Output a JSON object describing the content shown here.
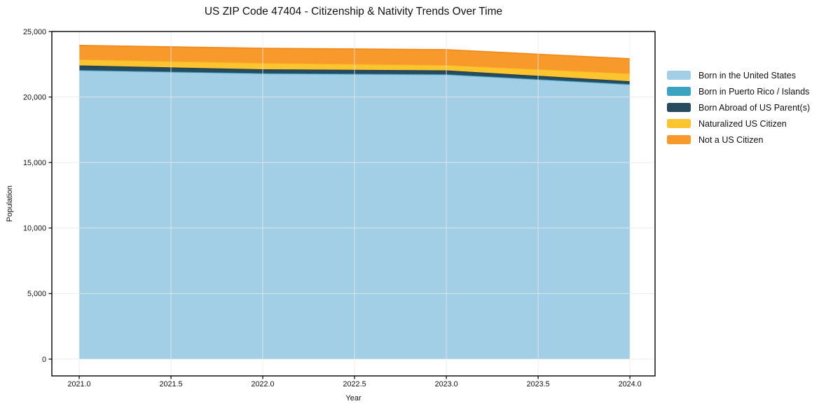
{
  "chart_data": {
    "type": "area",
    "stacked": true,
    "title": "US ZIP Code 47404 - Citizenship & Nativity Trends Over Time",
    "xlabel": "Year",
    "ylabel": "Population",
    "x": [
      2021,
      2022,
      2023,
      2024
    ],
    "series": [
      {
        "name": "Born in the United States",
        "color": "#a3cfe6",
        "edge": "#87bedd",
        "values": [
          22020,
          21780,
          21700,
          20950
        ]
      },
      {
        "name": "Born in Puerto Rico / Islands",
        "color": "#3aa3c0",
        "edge": "#2e93ae",
        "values": [
          40,
          40,
          40,
          40
        ]
      },
      {
        "name": "Born Abroad of US Parent(s)",
        "color": "#284a5e",
        "edge": "#1e3c4e",
        "values": [
          350,
          295,
          295,
          215
        ]
      },
      {
        "name": "Naturalized US Citizen",
        "color": "#fcc42f",
        "edge": "#f5b224",
        "values": [
          455,
          480,
          400,
          590
        ]
      },
      {
        "name": "Not a US Citizen",
        "color": "#f89a2b",
        "edge": "#f18a1c",
        "values": [
          1070,
          1120,
          1175,
          1120
        ]
      }
    ],
    "totals": [
      23935,
      23715,
      23610,
      22915
    ],
    "xlim": [
      2020.851,
      2024.137
    ],
    "ylim": [
      -1282,
      25000
    ],
    "xticks": {
      "values": [
        2021.0,
        2021.5,
        2022.0,
        2022.5,
        2023.0,
        2023.5,
        2024.0
      ],
      "labels": [
        "2021.0",
        "2021.5",
        "2022.0",
        "2022.5",
        "2023.0",
        "2023.5",
        "2024.0"
      ]
    },
    "yticks": {
      "values": [
        0,
        5000,
        10000,
        15000,
        20000,
        25000
      ],
      "labels": [
        "0",
        "5,000",
        "10,000",
        "15,000",
        "20,000",
        "25,000"
      ]
    },
    "grid": true,
    "grid_color": "#e9e9e9",
    "spine_color": "#000000",
    "text_color": "#111111",
    "legend_position": "right"
  }
}
